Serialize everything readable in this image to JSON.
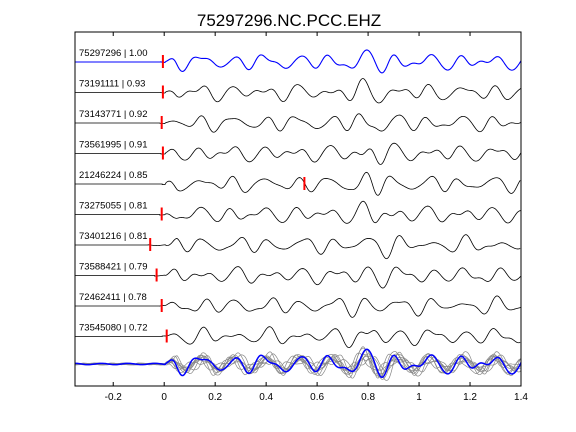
{
  "chart_data": {
    "type": "line",
    "title": "75297296.NC.PCC.EHZ",
    "xlabel": "",
    "ylabel": "",
    "xlim": [
      -0.35,
      1.4
    ],
    "x_ticks": [
      -0.2,
      0,
      0.2,
      0.4,
      0.6,
      0.8,
      1,
      1.2,
      1.4
    ],
    "grid": false,
    "colors": {
      "reference": "#0000ff",
      "trace": "#000000",
      "pick": "#ff0000",
      "stack": "#888888"
    },
    "traces": [
      {
        "label": "75297296 | 1.00",
        "id": "75297296",
        "cc": 1.0,
        "pick_time": -0.005,
        "reference": true
      },
      {
        "label": "73191111 | 0.93",
        "id": "73191111",
        "cc": 0.93,
        "pick_time": -0.005
      },
      {
        "label": "73143771 | 0.92",
        "id": "73143771",
        "cc": 0.92,
        "pick_time": -0.01
      },
      {
        "label": "73561995 | 0.91",
        "id": "73561995",
        "cc": 0.91,
        "pick_time": -0.005
      },
      {
        "label": "21246224 | 0.85",
        "id": "21246224",
        "cc": 0.85,
        "pick_time": 0.55
      },
      {
        "label": "73275055 | 0.81",
        "id": "73275055",
        "cc": 0.81,
        "pick_time": -0.01
      },
      {
        "label": "73401216 | 0.81",
        "id": "73401216",
        "cc": 0.81,
        "pick_time": -0.055
      },
      {
        "label": "73588421 | 0.79",
        "id": "73588421",
        "cc": 0.79,
        "pick_time": -0.03
      },
      {
        "label": "72462411 | 0.78",
        "id": "72462411",
        "cc": 0.78,
        "pick_time": -0.01
      },
      {
        "label": "73545080 | 0.72",
        "id": "73545080",
        "cc": 0.72,
        "pick_time": 0.01
      }
    ],
    "stack": {
      "overlay_count": 10
    }
  }
}
